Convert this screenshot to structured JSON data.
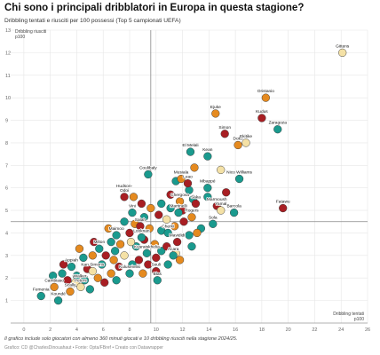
{
  "chart_data": {
    "type": "scatter",
    "title": "Chi sono i principali dribblatori in Europa in questa stagione?",
    "subtitle": "Dribbling tentati e riusciti per 100 possessi (Top 5 campionati UEFA)",
    "xlabel": [
      "Dribbling tentati",
      "p100"
    ],
    "ylabel": [
      "Dribbling riusciti",
      "p100"
    ],
    "xlim": [
      -1,
      26
    ],
    "ylim": [
      0,
      13
    ],
    "xticks": [
      0,
      2,
      4,
      6,
      8,
      10,
      12,
      14,
      16,
      18,
      20,
      22,
      24,
      26
    ],
    "yticks": [
      1,
      2,
      3,
      4,
      5,
      6,
      7,
      8,
      9,
      10,
      11,
      12,
      13
    ],
    "reference_lines": {
      "x": 9.6,
      "y": 4.5
    },
    "grid": true,
    "colors": {
      "teal": "#1a9a8e",
      "orange": "#e58a1f",
      "red": "#a81e23",
      "cream": "#f4e1a6"
    },
    "labeled_points": [
      {
        "name": "Gittens",
        "x": 24.1,
        "y": 12.0,
        "color": "cream"
      },
      {
        "name": "Oristanio",
        "x": 18.3,
        "y": 10.0,
        "color": "orange"
      },
      {
        "name": "Kudus",
        "x": 18.0,
        "y": 9.1,
        "color": "red"
      },
      {
        "name": "Zaragoza",
        "x": 19.2,
        "y": 8.6,
        "color": "teal"
      },
      {
        "name": "Ejuke",
        "x": 14.5,
        "y": 9.3,
        "color": "orange"
      },
      {
        "name": "Simon",
        "x": 15.2,
        "y": 8.4,
        "color": "red"
      },
      {
        "name": "Doku",
        "x": 16.2,
        "y": 7.9,
        "color": "orange"
      },
      {
        "name": "Ekitike",
        "x": 16.8,
        "y": 8.0,
        "color": "cream"
      },
      {
        "name": "El Melali",
        "x": 12.6,
        "y": 7.6,
        "color": "teal"
      },
      {
        "name": "Kean",
        "x": 13.9,
        "y": 7.4,
        "color": "teal"
      },
      {
        "name": "Coulibaly",
        "x": 9.4,
        "y": 6.6,
        "color": "teal"
      },
      {
        "name": "Musiala",
        "x": 11.9,
        "y": 6.4,
        "color": "orange"
      },
      {
        "name": "Leao",
        "x": 12.4,
        "y": 6.2,
        "color": "red"
      },
      {
        "name": "Mbappé",
        "x": 13.9,
        "y": 6.0,
        "color": "teal"
      },
      {
        "name": "Nico Williams",
        "x": 16.3,
        "y": 6.4,
        "color": "teal"
      },
      {
        "name": "Hudson-Odoi",
        "x": 7.6,
        "y": 5.6,
        "color": "red"
      },
      {
        "name": "Chergova",
        "x": 11.8,
        "y": 5.4,
        "color": "orange"
      },
      {
        "name": "Saka",
        "x": 13.0,
        "y": 5.3,
        "color": "red"
      },
      {
        "name": "Marmoush",
        "x": 14.6,
        "y": 5.2,
        "color": "red"
      },
      {
        "name": "Yamal",
        "x": 14.9,
        "y": 5.0,
        "color": "cream"
      },
      {
        "name": "Fatawu",
        "x": 19.6,
        "y": 5.1,
        "color": "red"
      },
      {
        "name": "Vini",
        "x": 8.2,
        "y": 4.9,
        "color": "teal"
      },
      {
        "name": "Martinelli",
        "x": 11.7,
        "y": 4.9,
        "color": "teal"
      },
      {
        "name": "Rogers",
        "x": 12.7,
        "y": 4.7,
        "color": "orange"
      },
      {
        "name": "Barcola",
        "x": 15.9,
        "y": 4.9,
        "color": "teal"
      },
      {
        "name": "Sola",
        "x": 14.3,
        "y": 4.4,
        "color": "teal"
      },
      {
        "name": "Salah",
        "x": 8.8,
        "y": 4.3,
        "color": "red"
      },
      {
        "name": "Maimoo",
        "x": 7.0,
        "y": 3.9,
        "color": "teal"
      },
      {
        "name": "Looknan",
        "x": 8.9,
        "y": 3.8,
        "color": "teal"
      },
      {
        "name": "Cherki",
        "x": 10.9,
        "y": 4.0,
        "color": "teal"
      },
      {
        "name": "Mavididi",
        "x": 11.6,
        "y": 3.6,
        "color": "red"
      },
      {
        "name": "Milton",
        "x": 5.7,
        "y": 3.3,
        "color": "teal"
      },
      {
        "name": "Kvaratskhelia",
        "x": 9.3,
        "y": 3.1,
        "color": "teal"
      },
      {
        "name": "Acara",
        "x": 11.3,
        "y": 3.0,
        "color": "teal"
      },
      {
        "name": "Appiah",
        "x": 3.6,
        "y": 2.5,
        "color": "teal"
      },
      {
        "name": "Kan Simons",
        "x": 5.2,
        "y": 2.3,
        "color": "cream"
      },
      {
        "name": "Souli",
        "x": 10.0,
        "y": 2.3,
        "color": "red"
      },
      {
        "name": "Kuluseivski",
        "x": 8.0,
        "y": 2.2,
        "color": "teal"
      },
      {
        "name": "Blas",
        "x": 10.1,
        "y": 1.9,
        "color": "teal"
      },
      {
        "name": "Cambiaso",
        "x": 2.3,
        "y": 1.6,
        "color": "orange"
      },
      {
        "name": "Scally",
        "x": 3.5,
        "y": 1.4,
        "color": "orange"
      },
      {
        "name": "Walker-Peters",
        "x": 4.3,
        "y": 1.6,
        "color": "cream"
      },
      {
        "name": "Femenia",
        "x": 1.3,
        "y": 1.2,
        "color": "teal"
      },
      {
        "name": "Koundé",
        "x": 2.6,
        "y": 1.0,
        "color": "teal"
      }
    ],
    "other_points": [
      {
        "x": 11.5,
        "y": 6.3,
        "color": "teal"
      },
      {
        "x": 12.9,
        "y": 6.9,
        "color": "orange"
      },
      {
        "x": 15.3,
        "y": 5.8,
        "color": "red"
      },
      {
        "x": 14.9,
        "y": 6.8,
        "color": "cream"
      },
      {
        "x": 12.5,
        "y": 5.9,
        "color": "teal"
      },
      {
        "x": 11.1,
        "y": 5.7,
        "color": "red"
      },
      {
        "x": 10.4,
        "y": 5.3,
        "color": "teal"
      },
      {
        "x": 9.6,
        "y": 5.1,
        "color": "orange"
      },
      {
        "x": 10.2,
        "y": 4.8,
        "color": "red"
      },
      {
        "x": 10.8,
        "y": 4.6,
        "color": "cream"
      },
      {
        "x": 11.1,
        "y": 5.1,
        "color": "teal"
      },
      {
        "x": 12.1,
        "y": 4.5,
        "color": "red"
      },
      {
        "x": 13.4,
        "y": 4.2,
        "color": "teal"
      },
      {
        "x": 13.9,
        "y": 5.6,
        "color": "teal"
      },
      {
        "x": 13.1,
        "y": 4.0,
        "color": "orange"
      },
      {
        "x": 12.5,
        "y": 3.9,
        "color": "teal"
      },
      {
        "x": 9.1,
        "y": 4.7,
        "color": "teal"
      },
      {
        "x": 8.4,
        "y": 4.4,
        "color": "orange"
      },
      {
        "x": 8.0,
        "y": 4.0,
        "color": "red"
      },
      {
        "x": 7.6,
        "y": 4.5,
        "color": "teal"
      },
      {
        "x": 7.3,
        "y": 3.5,
        "color": "orange"
      },
      {
        "x": 6.6,
        "y": 3.6,
        "color": "teal"
      },
      {
        "x": 6.2,
        "y": 3.0,
        "color": "red"
      },
      {
        "x": 6.8,
        "y": 2.8,
        "color": "orange"
      },
      {
        "x": 7.6,
        "y": 3.0,
        "color": "cream"
      },
      {
        "x": 8.5,
        "y": 3.4,
        "color": "teal"
      },
      {
        "x": 9.1,
        "y": 3.7,
        "color": "red"
      },
      {
        "x": 9.9,
        "y": 3.5,
        "color": "orange"
      },
      {
        "x": 10.4,
        "y": 3.2,
        "color": "teal"
      },
      {
        "x": 10.8,
        "y": 3.4,
        "color": "red"
      },
      {
        "x": 11.8,
        "y": 2.8,
        "color": "orange"
      },
      {
        "x": 10.4,
        "y": 4.1,
        "color": "teal"
      },
      {
        "x": 9.5,
        "y": 4.2,
        "color": "orange"
      },
      {
        "x": 8.7,
        "y": 2.8,
        "color": "red"
      },
      {
        "x": 8.2,
        "y": 2.6,
        "color": "teal"
      },
      {
        "x": 7.2,
        "y": 2.5,
        "color": "red"
      },
      {
        "x": 6.6,
        "y": 2.2,
        "color": "orange"
      },
      {
        "x": 5.9,
        "y": 2.6,
        "color": "teal"
      },
      {
        "x": 5.6,
        "y": 2.0,
        "color": "orange"
      },
      {
        "x": 4.8,
        "y": 2.4,
        "color": "red"
      },
      {
        "x": 4.5,
        "y": 2.9,
        "color": "teal"
      },
      {
        "x": 5.2,
        "y": 3.0,
        "color": "orange"
      },
      {
        "x": 4.0,
        "y": 2.1,
        "color": "teal"
      },
      {
        "x": 3.3,
        "y": 1.9,
        "color": "red"
      },
      {
        "x": 2.9,
        "y": 2.2,
        "color": "teal"
      },
      {
        "x": 3.9,
        "y": 1.8,
        "color": "cream"
      },
      {
        "x": 4.6,
        "y": 1.9,
        "color": "teal"
      },
      {
        "x": 6.1,
        "y": 1.8,
        "color": "red"
      },
      {
        "x": 7.0,
        "y": 1.9,
        "color": "teal"
      },
      {
        "x": 9.0,
        "y": 2.2,
        "color": "orange"
      },
      {
        "x": 6.9,
        "y": 3.2,
        "color": "teal"
      },
      {
        "x": 8.1,
        "y": 3.6,
        "color": "cream"
      },
      {
        "x": 9.4,
        "y": 2.6,
        "color": "red"
      },
      {
        "x": 10.9,
        "y": 2.6,
        "color": "teal"
      },
      {
        "x": 11.4,
        "y": 4.3,
        "color": "orange"
      },
      {
        "x": 12.0,
        "y": 5.0,
        "color": "red"
      },
      {
        "x": 12.8,
        "y": 5.5,
        "color": "teal"
      },
      {
        "x": 8.9,
        "y": 5.3,
        "color": "red"
      },
      {
        "x": 8.3,
        "y": 5.6,
        "color": "orange"
      },
      {
        "x": 5.3,
        "y": 3.6,
        "color": "red"
      },
      {
        "x": 4.2,
        "y": 3.3,
        "color": "orange"
      },
      {
        "x": 3.0,
        "y": 2.6,
        "color": "red"
      },
      {
        "x": 2.2,
        "y": 2.1,
        "color": "teal"
      },
      {
        "x": 5.0,
        "y": 1.5,
        "color": "teal"
      },
      {
        "x": 6.4,
        "y": 4.2,
        "color": "orange"
      },
      {
        "x": 11.5,
        "y": 3.1,
        "color": "cream"
      },
      {
        "x": 10.0,
        "y": 2.9,
        "color": "red"
      },
      {
        "x": 12.7,
        "y": 3.4,
        "color": "teal"
      }
    ]
  },
  "footnote": "Il grafico include solo giocatori con almeno 360 minuti giocati e 10 dribbling riusciti nella stagione 2024/25.",
  "credits": "Grafico: CD @CharlesDinouahaut • Fonte: Opta/FBref • Creato con Datawrapper"
}
